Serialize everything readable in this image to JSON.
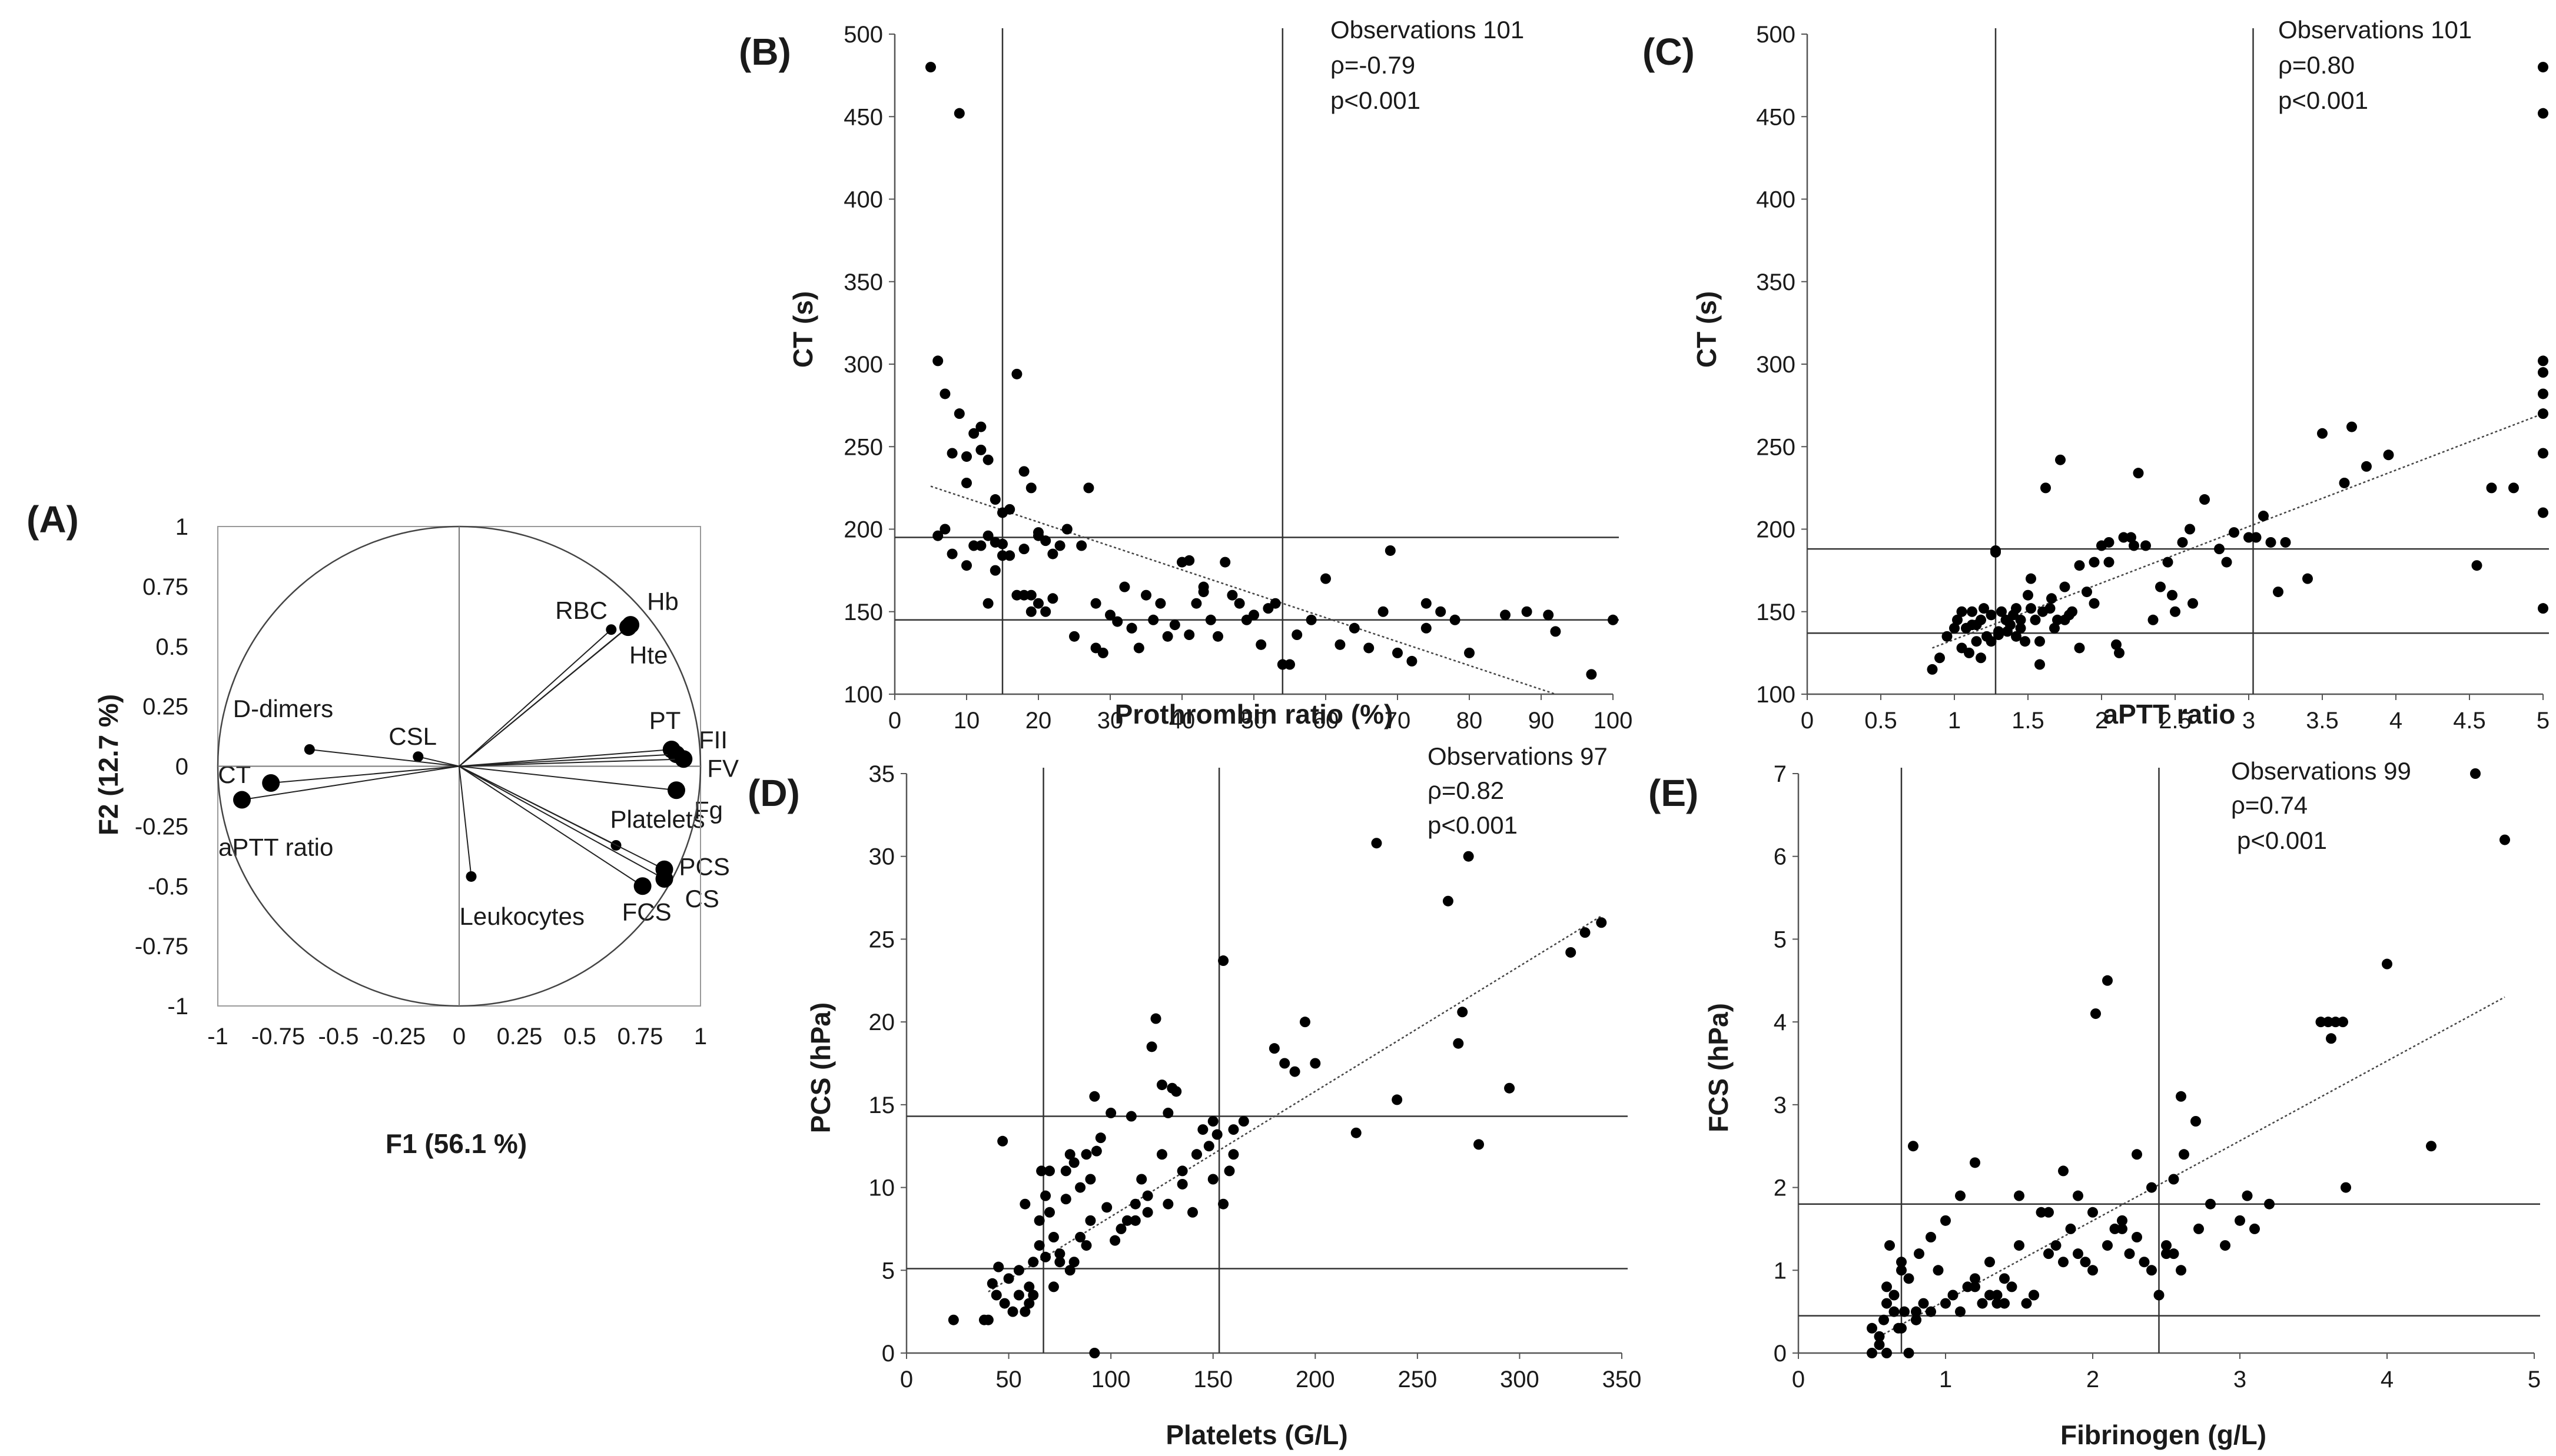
{
  "chart_data": [
    {
      "panel": "(A)",
      "type": "scatter",
      "subtype": "correlation-circle",
      "xlabel": "F1 (56.1 %)",
      "ylabel": "F2 (12.7 %)",
      "xlim": [
        -1,
        1
      ],
      "ylim": [
        -1,
        1
      ],
      "xticks": [
        "-1",
        "-0.75",
        "-0.5",
        "-0.25",
        "0",
        "0.25",
        "0.5",
        "0.75",
        "1"
      ],
      "yticks": [
        "-1",
        "-0.75",
        "-0.5",
        "-0.25",
        "0",
        "0.25",
        "0.5",
        "0.75",
        "1"
      ],
      "points": [
        {
          "label": "RBC",
          "x": 0.63,
          "y": 0.57
        },
        {
          "label": "Hb",
          "x": 0.71,
          "y": 0.59
        },
        {
          "label": "Hte",
          "x": 0.7,
          "y": 0.58
        },
        {
          "label": "PT",
          "x": 0.88,
          "y": 0.07
        },
        {
          "label": "FII",
          "x": 0.9,
          "y": 0.05
        },
        {
          "label": "FV",
          "x": 0.93,
          "y": 0.03
        },
        {
          "label": "Fg",
          "x": 0.9,
          "y": -0.1
        },
        {
          "label": "Platelets",
          "x": 0.65,
          "y": -0.33
        },
        {
          "label": "PCS",
          "x": 0.85,
          "y": -0.43
        },
        {
          "label": "CS",
          "x": 0.85,
          "y": -0.47
        },
        {
          "label": "FCS",
          "x": 0.76,
          "y": -0.5
        },
        {
          "label": "Leukocytes",
          "x": 0.05,
          "y": -0.46
        },
        {
          "label": "CSL",
          "x": -0.17,
          "y": 0.04
        },
        {
          "label": "D-dimers",
          "x": -0.62,
          "y": 0.07
        },
        {
          "label": "CT",
          "x": -0.78,
          "y": -0.07
        },
        {
          "label": "aPTT ratio",
          "x": -0.9,
          "y": -0.14
        }
      ]
    },
    {
      "panel": "(B)",
      "type": "scatter",
      "xlabel": "Prothrombin ratio (%)",
      "ylabel": "CT (s)",
      "xlim": [
        0,
        100
      ],
      "ylim": [
        100,
        500
      ],
      "xticks": [
        "0",
        "10",
        "20",
        "30",
        "40",
        "50",
        "60",
        "70",
        "80",
        "90",
        "100"
      ],
      "yticks": [
        "100",
        "150",
        "200",
        "250",
        "300",
        "350",
        "400",
        "450",
        "500"
      ],
      "annotations": [
        "Observations 101",
        "ρ=-0.79",
        "p<0.001"
      ],
      "vlines": [
        15,
        54
      ],
      "hlines": [
        145,
        195
      ],
      "trend": [
        [
          5,
          226
        ],
        [
          92,
          100
        ]
      ],
      "x": [
        5,
        9,
        6,
        7,
        8,
        9,
        10,
        10,
        11,
        12,
        12,
        13,
        14,
        6,
        7,
        8,
        10,
        11,
        12,
        13,
        14,
        15,
        15,
        16,
        17,
        18,
        18,
        19,
        20,
        20,
        21,
        22,
        13,
        14,
        15,
        16,
        17,
        18,
        19,
        20,
        21,
        22,
        23,
        24,
        25,
        26,
        27,
        28,
        29,
        30,
        31,
        32,
        33,
        34,
        35,
        36,
        37,
        38,
        39,
        40,
        41,
        42,
        43,
        44,
        45,
        46,
        47,
        48,
        49,
        50,
        52,
        54,
        56,
        58,
        60,
        62,
        64,
        66,
        68,
        70,
        72,
        74,
        76,
        78,
        80,
        85,
        88,
        91,
        92,
        97,
        100,
        69,
        74,
        55,
        19,
        28,
        41,
        43,
        33,
        51,
        53
      ],
      "y": [
        480,
        452,
        302,
        282,
        246,
        270,
        244,
        228,
        258,
        262,
        248,
        242,
        218,
        196,
        200,
        185,
        178,
        190,
        190,
        155,
        192,
        210,
        184,
        212,
        294,
        235,
        160,
        225,
        196,
        155,
        150,
        158,
        196,
        175,
        191,
        184,
        160,
        188,
        160,
        198,
        193,
        185,
        190,
        200,
        135,
        190,
        225,
        155,
        125,
        148,
        144,
        165,
        140,
        128,
        160,
        145,
        155,
        135,
        142,
        180,
        181,
        155,
        162,
        145,
        135,
        180,
        160,
        155,
        145,
        148,
        152,
        118,
        136,
        145,
        170,
        130,
        140,
        128,
        150,
        125,
        120,
        140,
        150,
        145,
        125,
        148,
        150,
        148,
        138,
        112,
        145,
        187,
        155,
        118,
        150,
        128,
        136,
        165,
        140,
        130,
        155
      ]
    },
    {
      "panel": "(C)",
      "type": "scatter",
      "xlabel": "aPTT ratio",
      "ylabel": "CT (s)",
      "xlim": [
        0,
        5
      ],
      "ylim": [
        100,
        500
      ],
      "xticks": [
        "0",
        "0.5",
        "1",
        "1.5",
        "2",
        "2.5",
        "3",
        "3.5",
        "4",
        "4.5",
        "5"
      ],
      "yticks": [
        "100",
        "150",
        "200",
        "250",
        "300",
        "350",
        "400",
        "450",
        "500"
      ],
      "annotations": [
        "Observations 101",
        "ρ=0.80",
        "p<0.001"
      ],
      "vlines": [
        1.28,
        3.03
      ],
      "hlines": [
        137,
        188
      ],
      "trend": [
        [
          0.85,
          128
        ],
        [
          5,
          270
        ]
      ],
      "x": [
        0.85,
        0.9,
        0.95,
        1.0,
        1.02,
        1.05,
        1.08,
        1.1,
        1.12,
        1.15,
        1.18,
        1.2,
        1.22,
        1.25,
        1.28,
        1.3,
        1.32,
        1.35,
        1.38,
        1.4,
        1.42,
        1.45,
        1.48,
        1.5,
        1.52,
        1.55,
        1.58,
        1.6,
        1.62,
        1.65,
        1.68,
        1.7,
        1.72,
        1.75,
        1.78,
        1.8,
        1.85,
        1.9,
        1.95,
        2.0,
        2.05,
        2.1,
        2.15,
        2.2,
        2.25,
        2.3,
        2.4,
        2.45,
        2.5,
        2.55,
        2.6,
        2.7,
        2.8,
        2.9,
        3.0,
        3.1,
        3.15,
        3.2,
        3.25,
        3.4,
        3.5,
        3.65,
        3.7,
        3.8,
        3.95,
        4.55,
        4.65,
        4.8,
        5.0,
        5.0,
        5.0,
        5.0,
        5.0,
        5.0,
        5.0,
        5.0,
        5.0,
        1.05,
        1.12,
        1.18,
        1.25,
        1.3,
        1.36,
        1.45,
        1.52,
        1.58,
        1.66,
        1.75,
        1.85,
        1.95,
        2.12,
        2.22,
        2.35,
        2.48,
        2.62,
        2.85,
        3.05,
        1.28,
        1.42,
        1.15,
        2.05
      ],
      "y": [
        115,
        122,
        135,
        140,
        145,
        128,
        140,
        125,
        150,
        132,
        145,
        152,
        135,
        148,
        187,
        138,
        150,
        145,
        142,
        148,
        152,
        140,
        132,
        160,
        170,
        145,
        118,
        150,
        225,
        152,
        140,
        145,
        242,
        165,
        148,
        150,
        178,
        162,
        155,
        190,
        180,
        130,
        195,
        195,
        234,
        190,
        165,
        180,
        150,
        192,
        200,
        218,
        188,
        198,
        195,
        208,
        192,
        162,
        192,
        170,
        258,
        228,
        262,
        238,
        245,
        178,
        225,
        225,
        480,
        452,
        302,
        295,
        282,
        270,
        246,
        210,
        152,
        150,
        142,
        122,
        132,
        136,
        138,
        145,
        152,
        132,
        158,
        145,
        128,
        180,
        125,
        190,
        145,
        160,
        155,
        180,
        195,
        186,
        135,
        142,
        192
      ]
    },
    {
      "panel": "(D)",
      "type": "scatter",
      "xlabel": "Platelets (G/L)",
      "ylabel": "PCS (hPa)",
      "xlim": [
        0,
        350
      ],
      "ylim": [
        0,
        35
      ],
      "xticks": [
        "0",
        "50",
        "100",
        "150",
        "200",
        "250",
        "300",
        "350"
      ],
      "yticks": [
        "0",
        "5",
        "10",
        "15",
        "20",
        "25",
        "30",
        "35"
      ],
      "annotations": [
        "Observations 97",
        "ρ=0.82",
        "p<0.001"
      ],
      "vlines": [
        67,
        153
      ],
      "hlines": [
        5.1,
        14.3
      ],
      "trend": [
        [
          40,
          3.7
        ],
        [
          340,
          26.4
        ]
      ],
      "x": [
        23,
        38,
        40,
        42,
        44,
        45,
        47,
        48,
        50,
        52,
        55,
        58,
        60,
        62,
        65,
        66,
        68,
        70,
        72,
        75,
        78,
        80,
        82,
        85,
        88,
        90,
        92,
        95,
        100,
        105,
        108,
        110,
        112,
        115,
        118,
        120,
        122,
        125,
        128,
        130,
        132,
        135,
        140,
        142,
        145,
        148,
        150,
        152,
        155,
        158,
        160,
        165,
        180,
        185,
        190,
        195,
        200,
        220,
        230,
        240,
        265,
        270,
        272,
        275,
        280,
        295,
        325,
        332,
        340,
        92,
        55,
        60,
        65,
        70,
        75,
        80,
        85,
        90,
        58,
        62,
        68,
        72,
        78,
        82,
        88,
        93,
        98,
        102,
        112,
        118,
        125,
        128,
        135,
        142,
        150,
        155,
        160
      ],
      "y": [
        2.0,
        2.0,
        2.0,
        4.2,
        3.5,
        5.2,
        12.8,
        3.0,
        4.5,
        2.5,
        3.5,
        2.5,
        4.0,
        5.5,
        8.0,
        11.0,
        9.5,
        8.5,
        7.0,
        6.0,
        11.0,
        12.0,
        5.5,
        10.0,
        12.0,
        8.0,
        15.5,
        13.0,
        14.5,
        7.5,
        8.0,
        14.3,
        9.0,
        10.5,
        8.5,
        18.5,
        20.2,
        16.2,
        9.0,
        16.0,
        15.8,
        11.0,
        8.5,
        12.0,
        13.5,
        12.5,
        14.0,
        13.2,
        23.7,
        11.0,
        13.5,
        14.0,
        18.4,
        17.5,
        17.0,
        20.0,
        17.5,
        13.3,
        30.8,
        15.3,
        27.3,
        18.7,
        20.6,
        30.0,
        12.6,
        16.0,
        24.2,
        25.4,
        26.0,
        0.0,
        5.0,
        3.0,
        6.5,
        11.0,
        5.5,
        5.0,
        7.0,
        10.5,
        9.0,
        3.5,
        5.8,
        4.0,
        9.3,
        11.5,
        6.5,
        12.2,
        8.8,
        6.8,
        8.0,
        9.5,
        12.0,
        14.5,
        10.2,
        12.0,
        10.5,
        9.0,
        12.0
      ]
    },
    {
      "panel": "(E)",
      "type": "scatter",
      "xlabel": "Fibrinogen (g/L)",
      "ylabel": "FCS (hPa)",
      "xlim": [
        0,
        5
      ],
      "ylim": [
        0,
        7
      ],
      "xticks": [
        "0",
        "1",
        "2",
        "3",
        "4",
        "5"
      ],
      "yticks": [
        "0",
        "1",
        "2",
        "3",
        "4",
        "5",
        "6",
        "7"
      ],
      "annotations": [
        "Observations 99",
        "ρ=0.74",
        "p<0.001"
      ],
      "vlines": [
        0.7,
        2.45
      ],
      "hlines": [
        0.45,
        1.8
      ],
      "trend": [
        [
          0.55,
          0.2
        ],
        [
          4.8,
          4.3
        ]
      ],
      "x": [
        0.5,
        0.5,
        0.55,
        0.58,
        0.6,
        0.62,
        0.65,
        0.68,
        0.7,
        0.72,
        0.75,
        0.78,
        0.8,
        0.82,
        0.85,
        0.9,
        0.95,
        1.0,
        1.05,
        1.1,
        1.15,
        1.2,
        1.25,
        1.3,
        1.35,
        1.4,
        1.45,
        1.5,
        1.55,
        1.6,
        1.65,
        1.7,
        1.75,
        1.8,
        1.85,
        1.9,
        1.95,
        2.0,
        2.02,
        2.1,
        2.15,
        2.2,
        2.25,
        2.3,
        2.35,
        2.4,
        2.45,
        2.5,
        2.55,
        2.6,
        2.62,
        2.7,
        2.72,
        2.8,
        2.9,
        3.0,
        3.05,
        3.1,
        3.2,
        3.55,
        3.6,
        3.62,
        3.65,
        3.7,
        3.72,
        4.0,
        4.3,
        4.6,
        4.8,
        0.6,
        0.65,
        0.7,
        0.75,
        0.8,
        0.9,
        1.0,
        1.1,
        1.2,
        1.3,
        1.4,
        1.5,
        1.6,
        1.7,
        1.8,
        1.9,
        2.0,
        2.1,
        2.2,
        2.3,
        2.4,
        2.5,
        2.55,
        2.6,
        0.55,
        0.6,
        0.7,
        0.8,
        1.2,
        1.35
      ],
      "y": [
        0.0,
        0.3,
        0.2,
        0.4,
        0.0,
        1.3,
        0.7,
        0.3,
        1.1,
        0.5,
        0.0,
        2.5,
        0.4,
        1.2,
        0.6,
        1.4,
        1.0,
        1.6,
        0.7,
        1.9,
        0.8,
        2.3,
        0.6,
        1.1,
        0.7,
        0.9,
        0.8,
        1.9,
        0.6,
        0.7,
        1.7,
        1.7,
        1.3,
        2.2,
        1.5,
        1.9,
        1.1,
        1.7,
        4.1,
        4.5,
        1.5,
        1.5,
        1.2,
        2.4,
        1.1,
        2.0,
        0.7,
        1.2,
        2.1,
        3.1,
        2.4,
        2.8,
        1.5,
        1.8,
        1.3,
        1.6,
        1.9,
        1.5,
        1.8,
        4.0,
        4.0,
        3.8,
        4.0,
        4.0,
        2.0,
        4.7,
        2.5,
        7.0,
        6.2,
        0.8,
        0.5,
        0.3,
        0.9,
        0.5,
        0.5,
        0.6,
        0.5,
        0.8,
        0.7,
        0.6,
        1.3,
        0.7,
        1.2,
        1.1,
        1.2,
        1.0,
        1.3,
        1.6,
        1.4,
        1.0,
        1.3,
        1.2,
        1.0,
        0.1,
        0.6,
        1.0,
        0.4,
        0.9,
        0.6
      ]
    }
  ]
}
